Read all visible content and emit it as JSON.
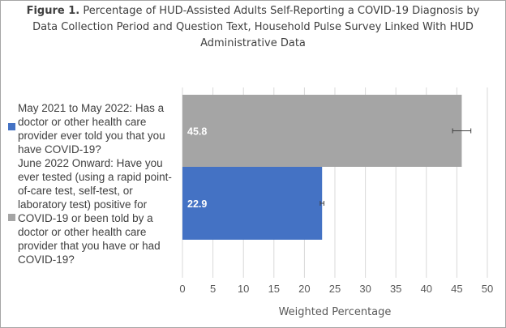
{
  "title": {
    "label": "Figure 1.",
    "text": "Percentage of HUD-Assisted Adults Self-Reporting a COVID-19 Diagnosis by Data Collection Period and Question Text, Household Pulse Survey Linked With HUD Administrative Data"
  },
  "colors": {
    "series_gray": "#a5a5a5",
    "series_blue": "#4472c4",
    "axis_text": "#595959",
    "grid": "#d9d9d9"
  },
  "chart_data": {
    "type": "bar",
    "orientation": "horizontal",
    "title": "Figure 1. Percentage of HUD-Assisted Adults Self-Reporting a COVID-19 Diagnosis by Data Collection Period and Question Text, Household Pulse Survey Linked With HUD Administrative Data",
    "xlabel": "Weighted Percentage",
    "xlim": [
      0,
      50
    ],
    "xticks": [
      0,
      5,
      10,
      15,
      20,
      25,
      30,
      35,
      40,
      45,
      50
    ],
    "grid": true,
    "legend_position": "left",
    "series": [
      {
        "name": "May 2021 to May 2022: Has a doctor or other health care provider ever told you that you have COVID-19?",
        "value": 22.9,
        "value_label": "22.9",
        "error": [
          22.6,
          23.2
        ],
        "color": "#4472c4"
      },
      {
        "name": "June 2022 Onward: Have you ever tested (using a rapid point-of-care test, self-test, or laboratory test) positive for COVID-19 or been told by a doctor or other health care provider that you have or had COVID-19?",
        "value": 45.8,
        "value_label": "45.8",
        "error": [
          44.3,
          47.3
        ],
        "color": "#a5a5a5"
      }
    ]
  }
}
